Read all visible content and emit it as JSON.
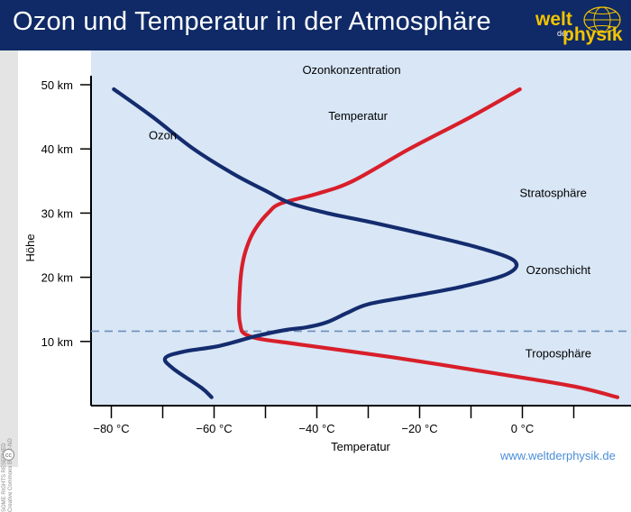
{
  "header": {
    "title": "Ozon und Temperatur in der Atmosphäre"
  },
  "logo": {
    "welt": "welt",
    "der": "der",
    "physik": "physik"
  },
  "license": {
    "line1": "SOME RIGHTS RESERVED",
    "line2": "Creative Commons BY-NC-ND",
    "cc_symbol": "cc"
  },
  "footer": {
    "url": "www.weltderphysik.de"
  },
  "colors": {
    "header_bg": "#0f2a66",
    "plot_bg": "#d8e6f6",
    "ozone": "#142c6e",
    "temperature": "#d81f2a",
    "dashed": "#6e8fb8",
    "accent": "#f4c400"
  },
  "chart_data": {
    "type": "line",
    "top_label": "Ozonkonzentration",
    "xlabel": "Temperatur",
    "ylabel": "Höhe",
    "xlim": [
      -84,
      20
    ],
    "ylim": [
      0,
      50
    ],
    "x_ticks": [
      -80,
      -60,
      -40,
      -20,
      0
    ],
    "x_tick_labels": [
      "−80 °C",
      "−60 °C",
      "−40 °C",
      "−20 °C",
      "0 °C"
    ],
    "x_minor_ticks": [
      -70,
      -50,
      -30,
      -10,
      10
    ],
    "y_ticks": [
      10,
      20,
      30,
      40,
      50
    ],
    "y_tick_labels": [
      "10 km",
      "20 km",
      "30 km",
      "40 km",
      "50 km"
    ],
    "tropopause_km": 11.6,
    "series": [
      {
        "name": "Temperatur",
        "x_unit": "°C",
        "points": [
          [
            -0.5,
            49.3
          ],
          [
            -10,
            45
          ],
          [
            -22,
            40
          ],
          [
            -33,
            35
          ],
          [
            -40,
            33
          ],
          [
            -47,
            31.5
          ],
          [
            -49.5,
            30
          ],
          [
            -52,
            27.5
          ],
          [
            -53.5,
            25
          ],
          [
            -54.5,
            22
          ],
          [
            -55,
            18
          ],
          [
            -55,
            13
          ],
          [
            -53,
            10.8
          ],
          [
            -43,
            9.5
          ],
          [
            -25,
            7.5
          ],
          [
            -5,
            5
          ],
          [
            10,
            3
          ],
          [
            18.5,
            1.3
          ]
        ]
      },
      {
        "name": "Ozon",
        "x_unit": "relative",
        "points": [
          [
            -79.5,
            49.3
          ],
          [
            -72,
            45
          ],
          [
            -64,
            40
          ],
          [
            -56,
            36
          ],
          [
            -50,
            33.5
          ],
          [
            -45,
            31.5
          ],
          [
            -38,
            30
          ],
          [
            -29,
            28.5
          ],
          [
            -18,
            26.5
          ],
          [
            -8,
            24.5
          ],
          [
            -1.5,
            22.5
          ],
          [
            -3,
            20.5
          ],
          [
            -12,
            18.5
          ],
          [
            -22,
            17
          ],
          [
            -30,
            15.8
          ],
          [
            -34,
            14.5
          ],
          [
            -38,
            13
          ],
          [
            -42,
            12.2
          ],
          [
            -46,
            11.8
          ],
          [
            -52,
            10.8
          ],
          [
            -59,
            9.3
          ],
          [
            -66,
            8.4
          ],
          [
            -69.5,
            7.4
          ],
          [
            -68,
            5.8
          ],
          [
            -62.5,
            2.8
          ],
          [
            -60.5,
            1.3
          ]
        ]
      }
    ],
    "annotations": [
      {
        "text": "Ozon",
        "x": -70,
        "y": 41.5
      },
      {
        "text": "Temperatur",
        "x": -32,
        "y": 44.5
      },
      {
        "text": "Stratosphäre",
        "x": 6,
        "y": 32.5
      },
      {
        "text": "Ozonschicht",
        "x": 7,
        "y": 20.5
      },
      {
        "text": "Troposphäre",
        "x": 7,
        "y": 7.5
      }
    ]
  }
}
